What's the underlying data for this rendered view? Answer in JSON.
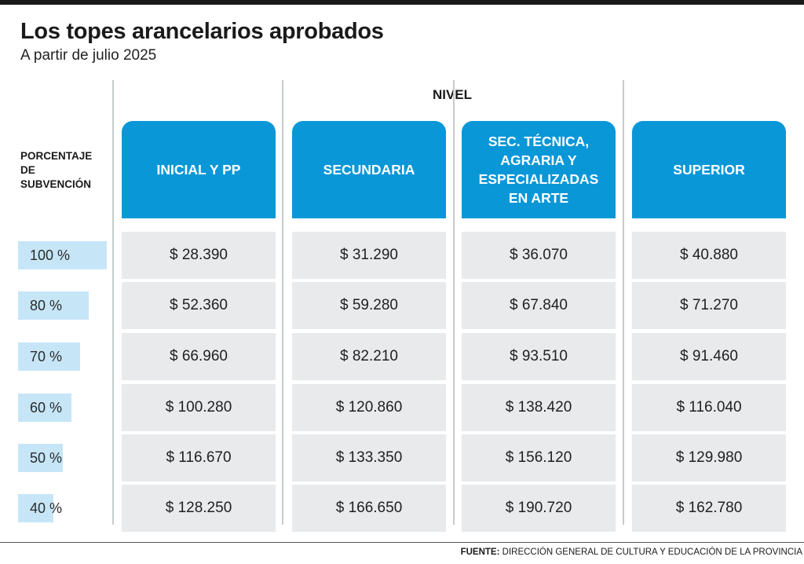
{
  "header": {
    "title": "Los topes arancelarios aprobados",
    "subtitle": "A partir de julio 2025"
  },
  "footer": {
    "source_label": "FUENTE:",
    "source_text": "DIRECCIÓN GENERAL DE CULTURA Y EDUCACIÓN DE LA PROVINCIA"
  },
  "chart_data": {
    "type": "table",
    "column_group_label": "NIVEL",
    "row_header_label": "PORCENTAJE\nDE\nSUBVENCIÓN",
    "columns": [
      "INICIAL Y PP",
      "SECUNDARIA",
      "SEC. TÉCNICA,\nAGRARIA Y\nESPECIALIZADAS\nEN ARTE",
      "SUPERIOR"
    ],
    "rows": [
      {
        "label": "100 %",
        "value": 100,
        "cells": [
          "$ 28.390",
          "$ 31.290",
          "$ 36.070",
          "$ 40.880"
        ]
      },
      {
        "label": "80 %",
        "value": 80,
        "cells": [
          "$ 52.360",
          "$ 59.280",
          "$ 67.840",
          "$ 71.270"
        ]
      },
      {
        "label": "70 %",
        "value": 70,
        "cells": [
          "$ 66.960",
          "$ 82.210",
          "$ 93.510",
          "$ 91.460"
        ]
      },
      {
        "label": "60 %",
        "value": 60,
        "cells": [
          "$ 100.280",
          "$ 120.860",
          "$ 138.420",
          "$ 116.040"
        ]
      },
      {
        "label": "50 %",
        "value": 50,
        "cells": [
          "$ 116.670",
          "$ 133.350",
          "$ 156.120",
          "$ 129.980"
        ]
      },
      {
        "label": "40 %",
        "value": 40,
        "cells": [
          "$ 128.250",
          "$ 166.650",
          "$ 190.720",
          "$ 162.780"
        ]
      }
    ],
    "colors": {
      "header_blue": "#0a97d8",
      "cell_gray": "#e8eaec",
      "percent_bar": "#c6e6f7"
    }
  }
}
